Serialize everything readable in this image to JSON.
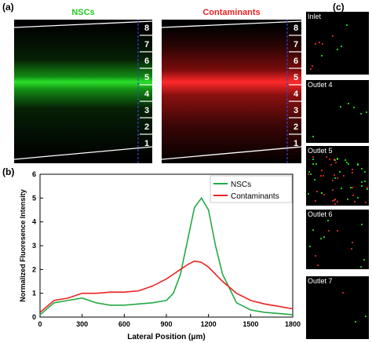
{
  "panels": {
    "a": "(a)",
    "b": "(b)",
    "c": "(c)"
  },
  "micrographs": [
    {
      "title": "NSCs",
      "title_color": "#22cc22",
      "band_color": "#22dd22"
    },
    {
      "title": "Contaminants",
      "title_color": "#ee2222",
      "band_color": "#ff2222"
    }
  ],
  "outlet_numbers": [
    "8",
    "7",
    "6",
    "5",
    "4",
    "3",
    "2",
    "1"
  ],
  "insets": [
    "Inlet",
    "Outlet 4",
    "Outlet 5",
    "Outlet 6",
    "Outlet 7"
  ],
  "chart_data": {
    "type": "line",
    "xlabel": "Lateral Position (μm)",
    "ylabel": "Normalized Fluoresence Intensity",
    "xlim": [
      0,
      1800
    ],
    "ylim": [
      0,
      6
    ],
    "xticks": [
      0,
      300,
      600,
      900,
      1200,
      1500,
      1800
    ],
    "yticks": [
      0,
      1,
      2,
      3,
      4,
      5,
      6
    ],
    "legend": "top-right",
    "x": [
      0,
      100,
      200,
      300,
      400,
      500,
      600,
      700,
      800,
      900,
      950,
      1000,
      1050,
      1100,
      1150,
      1200,
      1250,
      1300,
      1400,
      1500,
      1600,
      1700,
      1800
    ],
    "series": [
      {
        "name": "NSCs",
        "color": "#22aa44",
        "values": [
          0.1,
          0.6,
          0.7,
          0.8,
          0.6,
          0.5,
          0.5,
          0.55,
          0.6,
          0.7,
          1.0,
          1.8,
          3.2,
          4.6,
          5.0,
          4.5,
          3.0,
          1.8,
          0.6,
          0.3,
          0.2,
          0.15,
          0.1
        ]
      },
      {
        "name": "Contaminants",
        "color": "#ee2222",
        "values": [
          0.2,
          0.7,
          0.8,
          1.0,
          1.0,
          1.05,
          1.05,
          1.1,
          1.3,
          1.6,
          1.8,
          2.0,
          2.2,
          2.35,
          2.3,
          2.1,
          1.8,
          1.5,
          1.0,
          0.7,
          0.55,
          0.45,
          0.35
        ]
      }
    ]
  }
}
